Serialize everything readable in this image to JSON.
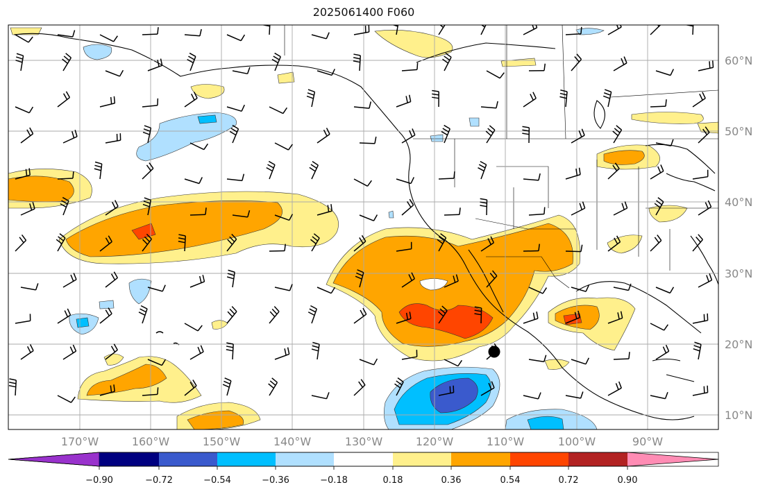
{
  "title": "2025061400 F060",
  "latitude_labels": [
    "60°N",
    "50°N",
    "40°N",
    "30°N",
    "20°N",
    "10°N"
  ],
  "longitude_labels": [
    "170°W",
    "160°W",
    "150°W",
    "140°W",
    "130°W",
    "120°W",
    "110°W",
    "100°W",
    "90°W"
  ],
  "colorbar": {
    "tick_labels": [
      "−0.90",
      "−0.72",
      "−0.54",
      "−0.36",
      "−0.18",
      "0.18",
      "0.36",
      "0.54",
      "0.72",
      "0.90"
    ],
    "under_color": "#9932cc",
    "colors": [
      "#000080",
      "#3a5acd",
      "#00bfff",
      "#b0e0ff",
      "#ffffff",
      "#fff08c",
      "#ffa500",
      "#ff4500",
      "#b22222",
      "#ff8cb4"
    ]
  },
  "colors": {
    "land_outline": "#000000",
    "grid": "#aaaaaa",
    "marker": "#000000"
  }
}
